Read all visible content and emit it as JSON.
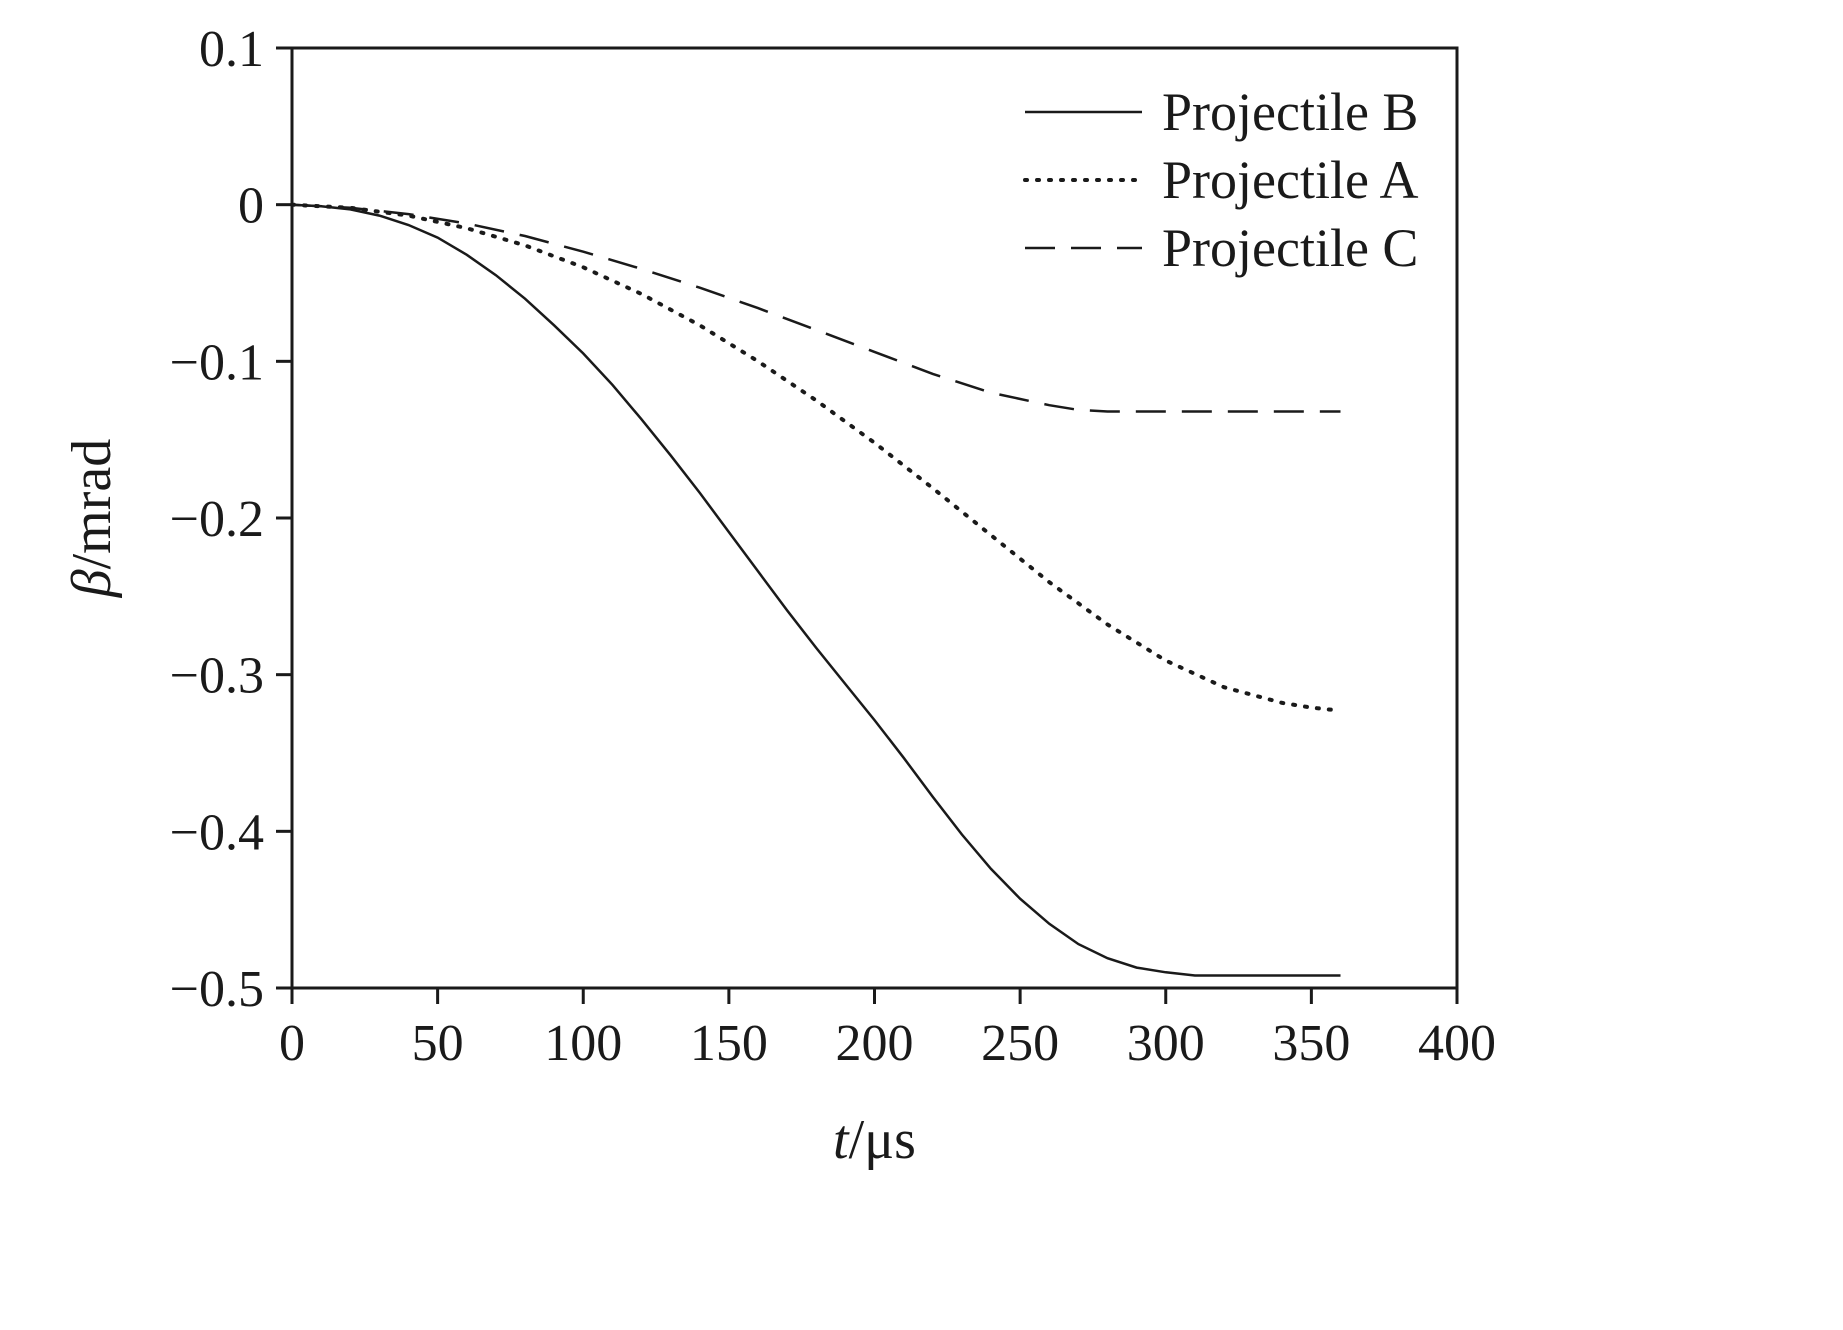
{
  "figure": {
    "background": "#ffffff",
    "ink_color": "#1a1a1a"
  },
  "chart_data": {
    "type": "line",
    "title": "",
    "xlabel_italic": "t",
    "xlabel_rest": "/μs",
    "ylabel_italic": "β",
    "ylabel_rest": "/mrad",
    "xlim": [
      0,
      400
    ],
    "ylim": [
      -0.5,
      0.1
    ],
    "xticks": [
      0,
      50,
      100,
      150,
      200,
      250,
      300,
      350,
      400
    ],
    "xtick_labels": [
      "0",
      "50",
      "100",
      "150",
      "200",
      "250",
      "300",
      "350",
      "400"
    ],
    "yticks": [
      0.1,
      0,
      -0.1,
      -0.2,
      -0.3,
      -0.4,
      -0.5
    ],
    "ytick_labels": [
      "0.1",
      "0",
      "−0.1",
      "−0.2",
      "−0.3",
      "−0.4",
      "−0.5"
    ],
    "grid": false,
    "legend_position": "top-right",
    "series": [
      {
        "name": "Projectile B",
        "style": "solid",
        "points": [
          [
            0,
            0
          ],
          [
            10,
            -0.001
          ],
          [
            20,
            -0.003
          ],
          [
            30,
            -0.007
          ],
          [
            40,
            -0.013
          ],
          [
            50,
            -0.021
          ],
          [
            60,
            -0.032
          ],
          [
            70,
            -0.045
          ],
          [
            80,
            -0.06
          ],
          [
            90,
            -0.077
          ],
          [
            100,
            -0.095
          ],
          [
            110,
            -0.115
          ],
          [
            120,
            -0.137
          ],
          [
            130,
            -0.16
          ],
          [
            140,
            -0.184
          ],
          [
            150,
            -0.209
          ],
          [
            160,
            -0.234
          ],
          [
            170,
            -0.259
          ],
          [
            180,
            -0.283
          ],
          [
            190,
            -0.306
          ],
          [
            200,
            -0.329
          ],
          [
            210,
            -0.353
          ],
          [
            220,
            -0.378
          ],
          [
            230,
            -0.402
          ],
          [
            240,
            -0.424
          ],
          [
            250,
            -0.443
          ],
          [
            260,
            -0.459
          ],
          [
            270,
            -0.472
          ],
          [
            280,
            -0.481
          ],
          [
            290,
            -0.487
          ],
          [
            300,
            -0.49
          ],
          [
            310,
            -0.492
          ],
          [
            320,
            -0.492
          ],
          [
            330,
            -0.492
          ],
          [
            340,
            -0.492
          ],
          [
            350,
            -0.492
          ],
          [
            360,
            -0.492
          ]
        ]
      },
      {
        "name": "Projectile A",
        "style": "dotted",
        "points": [
          [
            0,
            0
          ],
          [
            20,
            -0.002
          ],
          [
            40,
            -0.007
          ],
          [
            60,
            -0.015
          ],
          [
            80,
            -0.026
          ],
          [
            100,
            -0.04
          ],
          [
            120,
            -0.057
          ],
          [
            140,
            -0.077
          ],
          [
            160,
            -0.1
          ],
          [
            180,
            -0.125
          ],
          [
            200,
            -0.152
          ],
          [
            220,
            -0.181
          ],
          [
            240,
            -0.211
          ],
          [
            260,
            -0.241
          ],
          [
            280,
            -0.268
          ],
          [
            300,
            -0.291
          ],
          [
            320,
            -0.308
          ],
          [
            340,
            -0.318
          ],
          [
            350,
            -0.321
          ],
          [
            360,
            -0.323
          ]
        ]
      },
      {
        "name": "Projectile C",
        "style": "dashed",
        "points": [
          [
            0,
            0
          ],
          [
            20,
            -0.002
          ],
          [
            40,
            -0.006
          ],
          [
            60,
            -0.012
          ],
          [
            80,
            -0.02
          ],
          [
            100,
            -0.03
          ],
          [
            120,
            -0.041
          ],
          [
            140,
            -0.053
          ],
          [
            160,
            -0.066
          ],
          [
            180,
            -0.08
          ],
          [
            200,
            -0.094
          ],
          [
            220,
            -0.108
          ],
          [
            240,
            -0.12
          ],
          [
            260,
            -0.128
          ],
          [
            270,
            -0.131
          ],
          [
            280,
            -0.132
          ],
          [
            300,
            -0.132
          ],
          [
            320,
            -0.132
          ],
          [
            340,
            -0.132
          ],
          [
            360,
            -0.132
          ]
        ]
      }
    ],
    "legend_order": [
      "Projectile B",
      "Projectile A",
      "Projectile C"
    ]
  }
}
